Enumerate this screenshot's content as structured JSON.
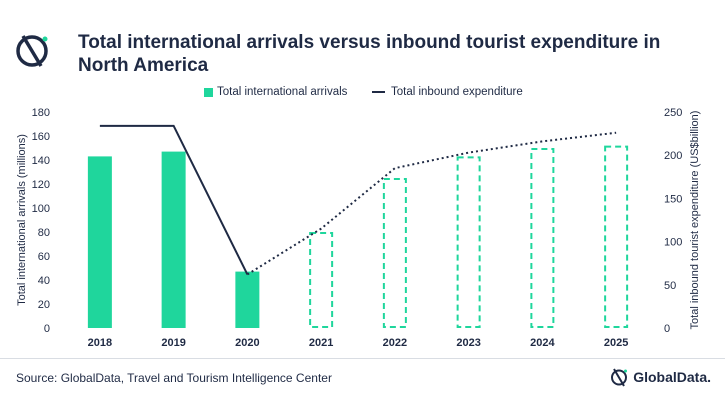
{
  "header": {
    "title": "Total international arrivals versus inbound tourist expenditure in North America",
    "logo_icon": "globaldata-mark-icon"
  },
  "legend": {
    "bar_label": "Total international arrivals",
    "line_label": "Total inbound expenditure"
  },
  "chart_data": {
    "type": "bar",
    "categories": [
      "2018",
      "2019",
      "2020",
      "2021",
      "2022",
      "2023",
      "2024",
      "2025"
    ],
    "series": [
      {
        "name": "Total international arrivals",
        "type": "bar",
        "axis": "left",
        "values": [
          143,
          147,
          47,
          80,
          125,
          143,
          150,
          152
        ],
        "forecast_from": "2021"
      },
      {
        "name": "Total inbound expenditure",
        "type": "line",
        "axis": "right",
        "values": [
          234,
          234,
          62,
          115,
          185,
          203,
          216,
          226
        ],
        "forecast_from": "2020"
      }
    ],
    "ylabel": "Total international arrivals (millions)",
    "y2label": "Total inbound tourist expenditure (US$billion)",
    "ylim": [
      0,
      180
    ],
    "y2lim": [
      0,
      250
    ],
    "yticks": [
      "0",
      "20",
      "40",
      "60",
      "80",
      "100",
      "120",
      "140",
      "160",
      "180"
    ],
    "y2ticks": [
      "0",
      "50",
      "100",
      "150",
      "200",
      "250"
    ],
    "grid": false,
    "legend_position": "top",
    "colors": {
      "bar": "#1fd69c",
      "line": "#1f2a44"
    }
  },
  "footer": {
    "source": "Source: GlobalData, Travel and Tourism Intelligence Center",
    "brand": "GlobalData."
  }
}
